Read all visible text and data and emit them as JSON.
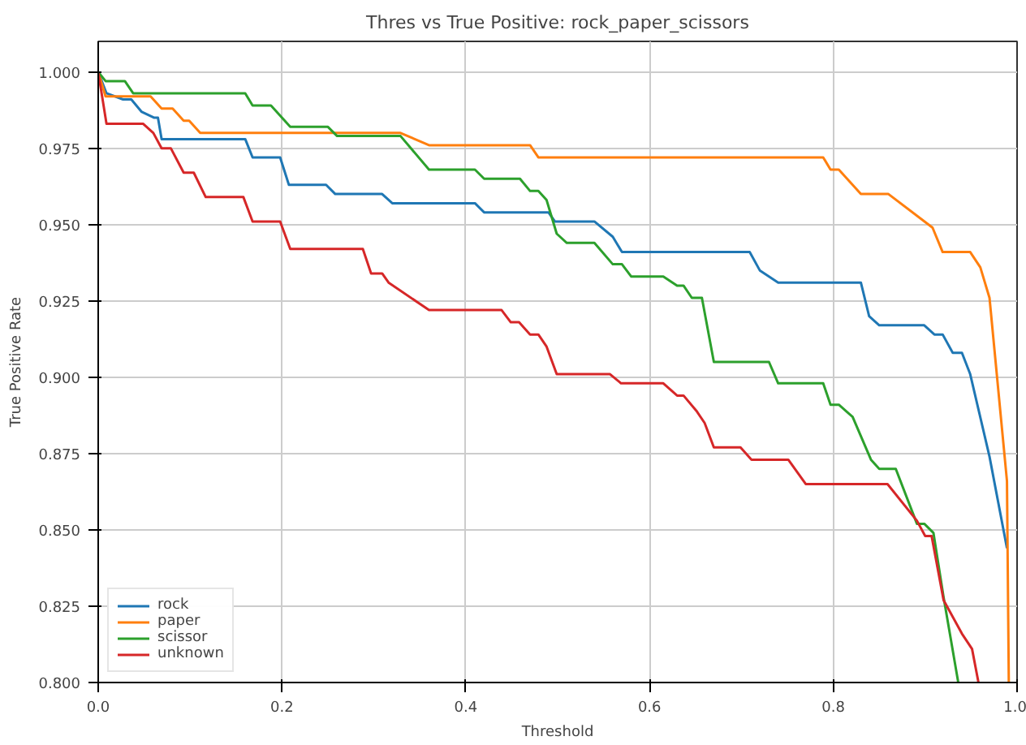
{
  "chart_data": {
    "type": "line",
    "title": "Thres vs True Positive: rock_paper_scissors",
    "xlabel": "Threshold",
    "ylabel": "True Positive Rate",
    "xlim": [
      0,
      1
    ],
    "ylim": [
      0.8,
      1.01
    ],
    "xticks": [
      {
        "value": 0,
        "label": "0.0"
      },
      0.2,
      0.4,
      0.6,
      0.8,
      {
        "value": 1,
        "label": "1.0"
      }
    ],
    "yticks": [
      {
        "value": 0.8,
        "label": "0.800"
      },
      {
        "value": 0.825,
        "label": "0.825"
      },
      {
        "value": 0.85,
        "label": "0.850"
      },
      {
        "value": 0.875,
        "label": "0.875"
      },
      {
        "value": 0.9,
        "label": "0.900"
      },
      {
        "value": 0.925,
        "label": "0.925"
      },
      {
        "value": 0.95,
        "label": "0.950"
      },
      {
        "value": 0.975,
        "label": "0.975"
      },
      {
        "value": 1.0,
        "label": "1.000"
      }
    ],
    "grid": true,
    "legend": "bottom left",
    "line_style": "solid",
    "marker": "none",
    "series": [
      {
        "name": "rock",
        "color": "#1f77b4",
        "x": [
          0,
          0.009,
          0.027,
          0.036,
          0.047,
          0.061,
          0.065,
          0.069,
          0.16,
          0.168,
          0.198,
          0.2075,
          0.248,
          0.258,
          0.309,
          0.32,
          0.41,
          0.42,
          0.49,
          0.497,
          0.54,
          0.56,
          0.57,
          0.709,
          0.72,
          0.74,
          0.83,
          0.839,
          0.85,
          0.899,
          0.91,
          0.919,
          0.93,
          0.94,
          0.949,
          0.97,
          0.989
        ],
        "values": [
          1.0,
          0.993,
          0.991,
          0.991,
          0.987,
          0.985,
          0.985,
          0.978,
          0.978,
          0.972,
          0.972,
          0.963,
          0.963,
          0.96,
          0.96,
          0.957,
          0.957,
          0.954,
          0.954,
          0.951,
          0.951,
          0.946,
          0.941,
          0.941,
          0.935,
          0.931,
          0.931,
          0.92,
          0.917,
          0.917,
          0.914,
          0.914,
          0.908,
          0.908,
          0.901,
          0.874,
          0.844
        ]
      },
      {
        "name": "paper",
        "color": "#ff7f0e",
        "x": [
          0,
          0.008,
          0.057,
          0.069,
          0.081,
          0.093,
          0.099,
          0.111,
          0.329,
          0.36,
          0.47,
          0.479,
          0.789,
          0.797,
          0.806,
          0.83,
          0.86,
          0.908,
          0.919,
          0.949,
          0.96,
          0.97,
          0.989,
          0.991
        ],
        "values": [
          1.0,
          0.992,
          0.992,
          0.988,
          0.988,
          0.984,
          0.984,
          0.98,
          0.98,
          0.976,
          0.976,
          0.972,
          0.972,
          0.968,
          0.968,
          0.96,
          0.96,
          0.949,
          0.941,
          0.941,
          0.936,
          0.926,
          0.866,
          0.8
        ]
      },
      {
        "name": "scissor",
        "color": "#2ca02c",
        "x": [
          0,
          0.008,
          0.029,
          0.038,
          0.16,
          0.168,
          0.188,
          0.209,
          0.25,
          0.26,
          0.329,
          0.36,
          0.41,
          0.42,
          0.459,
          0.47,
          0.479,
          0.488,
          0.499,
          0.51,
          0.54,
          0.56,
          0.57,
          0.58,
          0.615,
          0.63,
          0.637,
          0.646,
          0.657,
          0.67,
          0.73,
          0.74,
          0.789,
          0.797,
          0.806,
          0.821,
          0.841,
          0.85,
          0.868,
          0.891,
          0.899,
          0.909,
          0.92,
          0.936
        ],
        "values": [
          1.0,
          0.997,
          0.997,
          0.993,
          0.993,
          0.989,
          0.989,
          0.982,
          0.982,
          0.979,
          0.979,
          0.968,
          0.968,
          0.965,
          0.965,
          0.961,
          0.961,
          0.958,
          0.947,
          0.944,
          0.944,
          0.937,
          0.937,
          0.933,
          0.933,
          0.93,
          0.93,
          0.926,
          0.926,
          0.905,
          0.905,
          0.898,
          0.898,
          0.891,
          0.891,
          0.887,
          0.873,
          0.87,
          0.87,
          0.852,
          0.852,
          0.849,
          0.828,
          0.8
        ]
      },
      {
        "name": "unknown",
        "color": "#d62728",
        "x": [
          0,
          0.009,
          0.049,
          0.06,
          0.069,
          0.079,
          0.093,
          0.104,
          0.117,
          0.158,
          0.168,
          0.198,
          0.209,
          0.288,
          0.297,
          0.309,
          0.316,
          0.36,
          0.439,
          0.449,
          0.458,
          0.47,
          0.479,
          0.488,
          0.499,
          0.557,
          0.569,
          0.615,
          0.63,
          0.637,
          0.651,
          0.66,
          0.67,
          0.699,
          0.711,
          0.751,
          0.77,
          0.859,
          0.891,
          0.9,
          0.907,
          0.92,
          0.94,
          0.951,
          0.958
        ],
        "values": [
          1.0,
          0.983,
          0.983,
          0.98,
          0.975,
          0.975,
          0.967,
          0.967,
          0.959,
          0.959,
          0.951,
          0.951,
          0.942,
          0.942,
          0.934,
          0.934,
          0.931,
          0.922,
          0.922,
          0.918,
          0.918,
          0.914,
          0.914,
          0.91,
          0.901,
          0.901,
          0.898,
          0.898,
          0.894,
          0.894,
          0.889,
          0.885,
          0.877,
          0.877,
          0.873,
          0.873,
          0.865,
          0.865,
          0.853,
          0.848,
          0.848,
          0.827,
          0.816,
          0.811,
          0.8
        ]
      }
    ]
  }
}
